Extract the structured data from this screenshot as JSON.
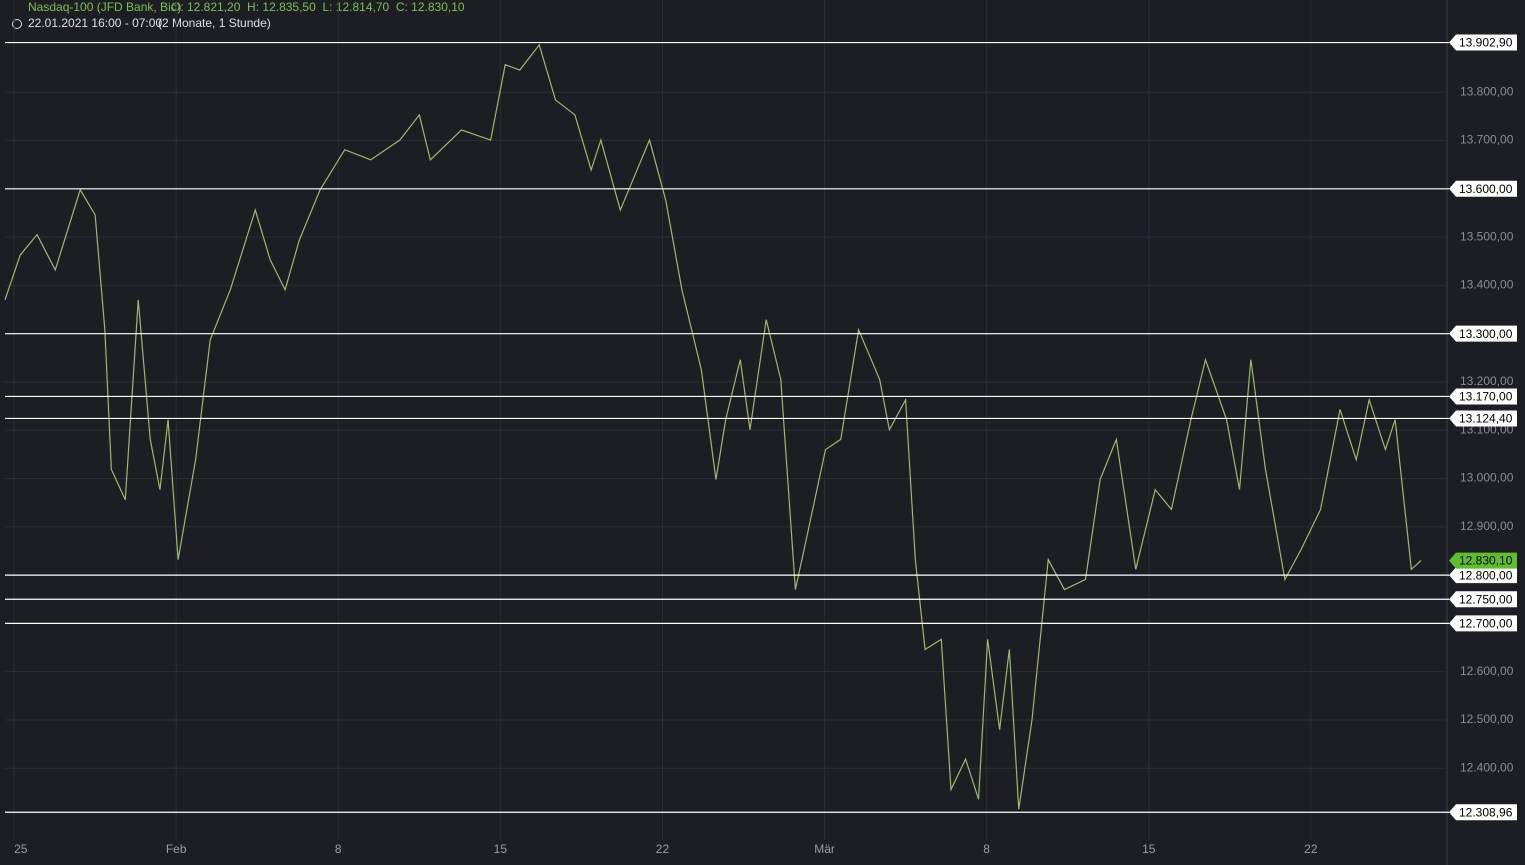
{
  "header": {
    "title": "Nasdaq-100 (JFD Bank, Bid)",
    "ohlc": "O: 12.821,20  H: 12.835,50  L: 12.814,70  C: 12.830,10",
    "period": "22.01.2021 16:00 - 07:00",
    "range": "(2 Monate, 1 Stunde)"
  },
  "chart_data": {
    "type": "line",
    "series": [
      {
        "color": "#9fb86a",
        "x": [
          -0.28,
          0.19,
          0.71,
          1.27,
          2.04,
          2.5,
          2.8,
          3.0,
          3.43,
          3.83,
          4.2,
          4.5,
          4.75,
          5.06,
          5.6,
          6.05,
          6.67,
          7.44,
          7.9,
          8.36,
          8.8,
          9.44,
          10.2,
          11,
          11.9,
          12.5,
          12.84,
          13.8,
          14.7,
          15.15,
          15.6,
          16.2,
          16.7,
          17.3,
          17.8,
          18.1,
          18.7,
          19.6,
          20.1,
          20.6,
          21.2,
          21.65,
          21.95,
          22.4,
          22.7,
          23.2,
          23.65,
          24.1,
          24.5,
          25.03,
          25.5,
          26.05,
          26.7,
          27.0,
          27.5,
          27.8,
          28.1,
          28.6,
          28.9,
          29.35,
          29.75,
          30.03,
          30.4,
          30.7,
          30.99,
          31.4,
          31.9,
          32.4,
          33.05,
          33.5,
          34,
          34.6,
          35.2,
          35.7,
          36.3,
          36.75,
          37.4,
          37.8,
          38.15,
          38.6,
          39.2,
          39.7,
          40.3,
          40.9,
          41.4,
          41.8,
          42.3,
          42.6,
          43.1,
          43.4
        ],
        "values": [
          13370,
          13463,
          13505,
          13432,
          13598,
          13546,
          13308,
          13019,
          12956,
          13370,
          13081,
          12977,
          13122,
          12832,
          13039,
          13287,
          13391,
          13556,
          13453,
          13391,
          13494,
          13598,
          13681,
          13660,
          13701,
          13753,
          13660,
          13722,
          13701,
          13857,
          13846,
          13898,
          13784,
          13753,
          13639,
          13701,
          13556,
          13701,
          13577,
          13391,
          13225,
          12998,
          13122,
          13246,
          13101,
          13329,
          13205,
          12770,
          12894,
          13060,
          13081,
          13308,
          13205,
          13101,
          13163,
          12832,
          12646,
          12667,
          12356,
          12419,
          12336,
          12667,
          12480,
          12646,
          12315,
          12501,
          12832,
          12770,
          12791,
          12998,
          13081,
          12812,
          12977,
          12936,
          13122,
          13246,
          13122,
          12977,
          13246,
          13019,
          12791,
          12853,
          12936,
          13143,
          13039,
          13163,
          13060,
          13122,
          12812,
          12830.1
        ]
      }
    ],
    "xlim": [
      -0.28,
      44.2
    ],
    "xticks": [
      {
        "value": 0,
        "label": "25"
      },
      {
        "value": 5,
        "label": "Feb"
      },
      {
        "value": 10,
        "label": "8"
      },
      {
        "value": 15,
        "label": "15"
      },
      {
        "value": 20,
        "label": "22"
      },
      {
        "value": 25,
        "label": "Mär"
      },
      {
        "value": 30,
        "label": "8"
      },
      {
        "value": 35,
        "label": "15"
      },
      {
        "value": 40,
        "label": "22"
      }
    ],
    "ylim": [
      12210,
      13991
    ],
    "yticks": [
      {
        "value": 12400,
        "label": "12.400,00"
      },
      {
        "value": 12500,
        "label": "12.500,00"
      },
      {
        "value": 12600,
        "label": "12.600,00"
      },
      {
        "value": 12700,
        "label": "12.700,00"
      },
      {
        "value": 12800,
        "label": "12.800,00"
      },
      {
        "value": 12900,
        "label": "12.900,00"
      },
      {
        "value": 13000,
        "label": "13.000,00"
      },
      {
        "value": 13100,
        "label": "13.100,00"
      },
      {
        "value": 13200,
        "label": "13.200,00"
      },
      {
        "value": 13300,
        "label": "13.300,00"
      },
      {
        "value": 13400,
        "label": "13.400,00"
      },
      {
        "value": 13500,
        "label": "13.500,00"
      },
      {
        "value": 13600,
        "label": "13.600,00"
      },
      {
        "value": 13700,
        "label": "13.700,00"
      },
      {
        "value": 13800,
        "label": "13.800,00"
      }
    ],
    "levels": [
      {
        "value": 13902.9,
        "label": "13.902,90"
      },
      {
        "value": 13600,
        "label": "13.600,00"
      },
      {
        "value": 13300,
        "label": "13.300,00"
      },
      {
        "value": 13170,
        "label": "13.170,00"
      },
      {
        "value": 13124.4,
        "label": "13.124,40"
      },
      {
        "value": 12800,
        "label": "12.800,00"
      },
      {
        "value": 12750,
        "label": "12.750,00"
      },
      {
        "value": 12700,
        "label": "12.700,00"
      },
      {
        "value": 12308.96,
        "label": "12.308,96"
      }
    ],
    "last": {
      "value": 12830.1,
      "label": "12.830,10",
      "color": "#5fbf2a"
    },
    "grid": true
  }
}
